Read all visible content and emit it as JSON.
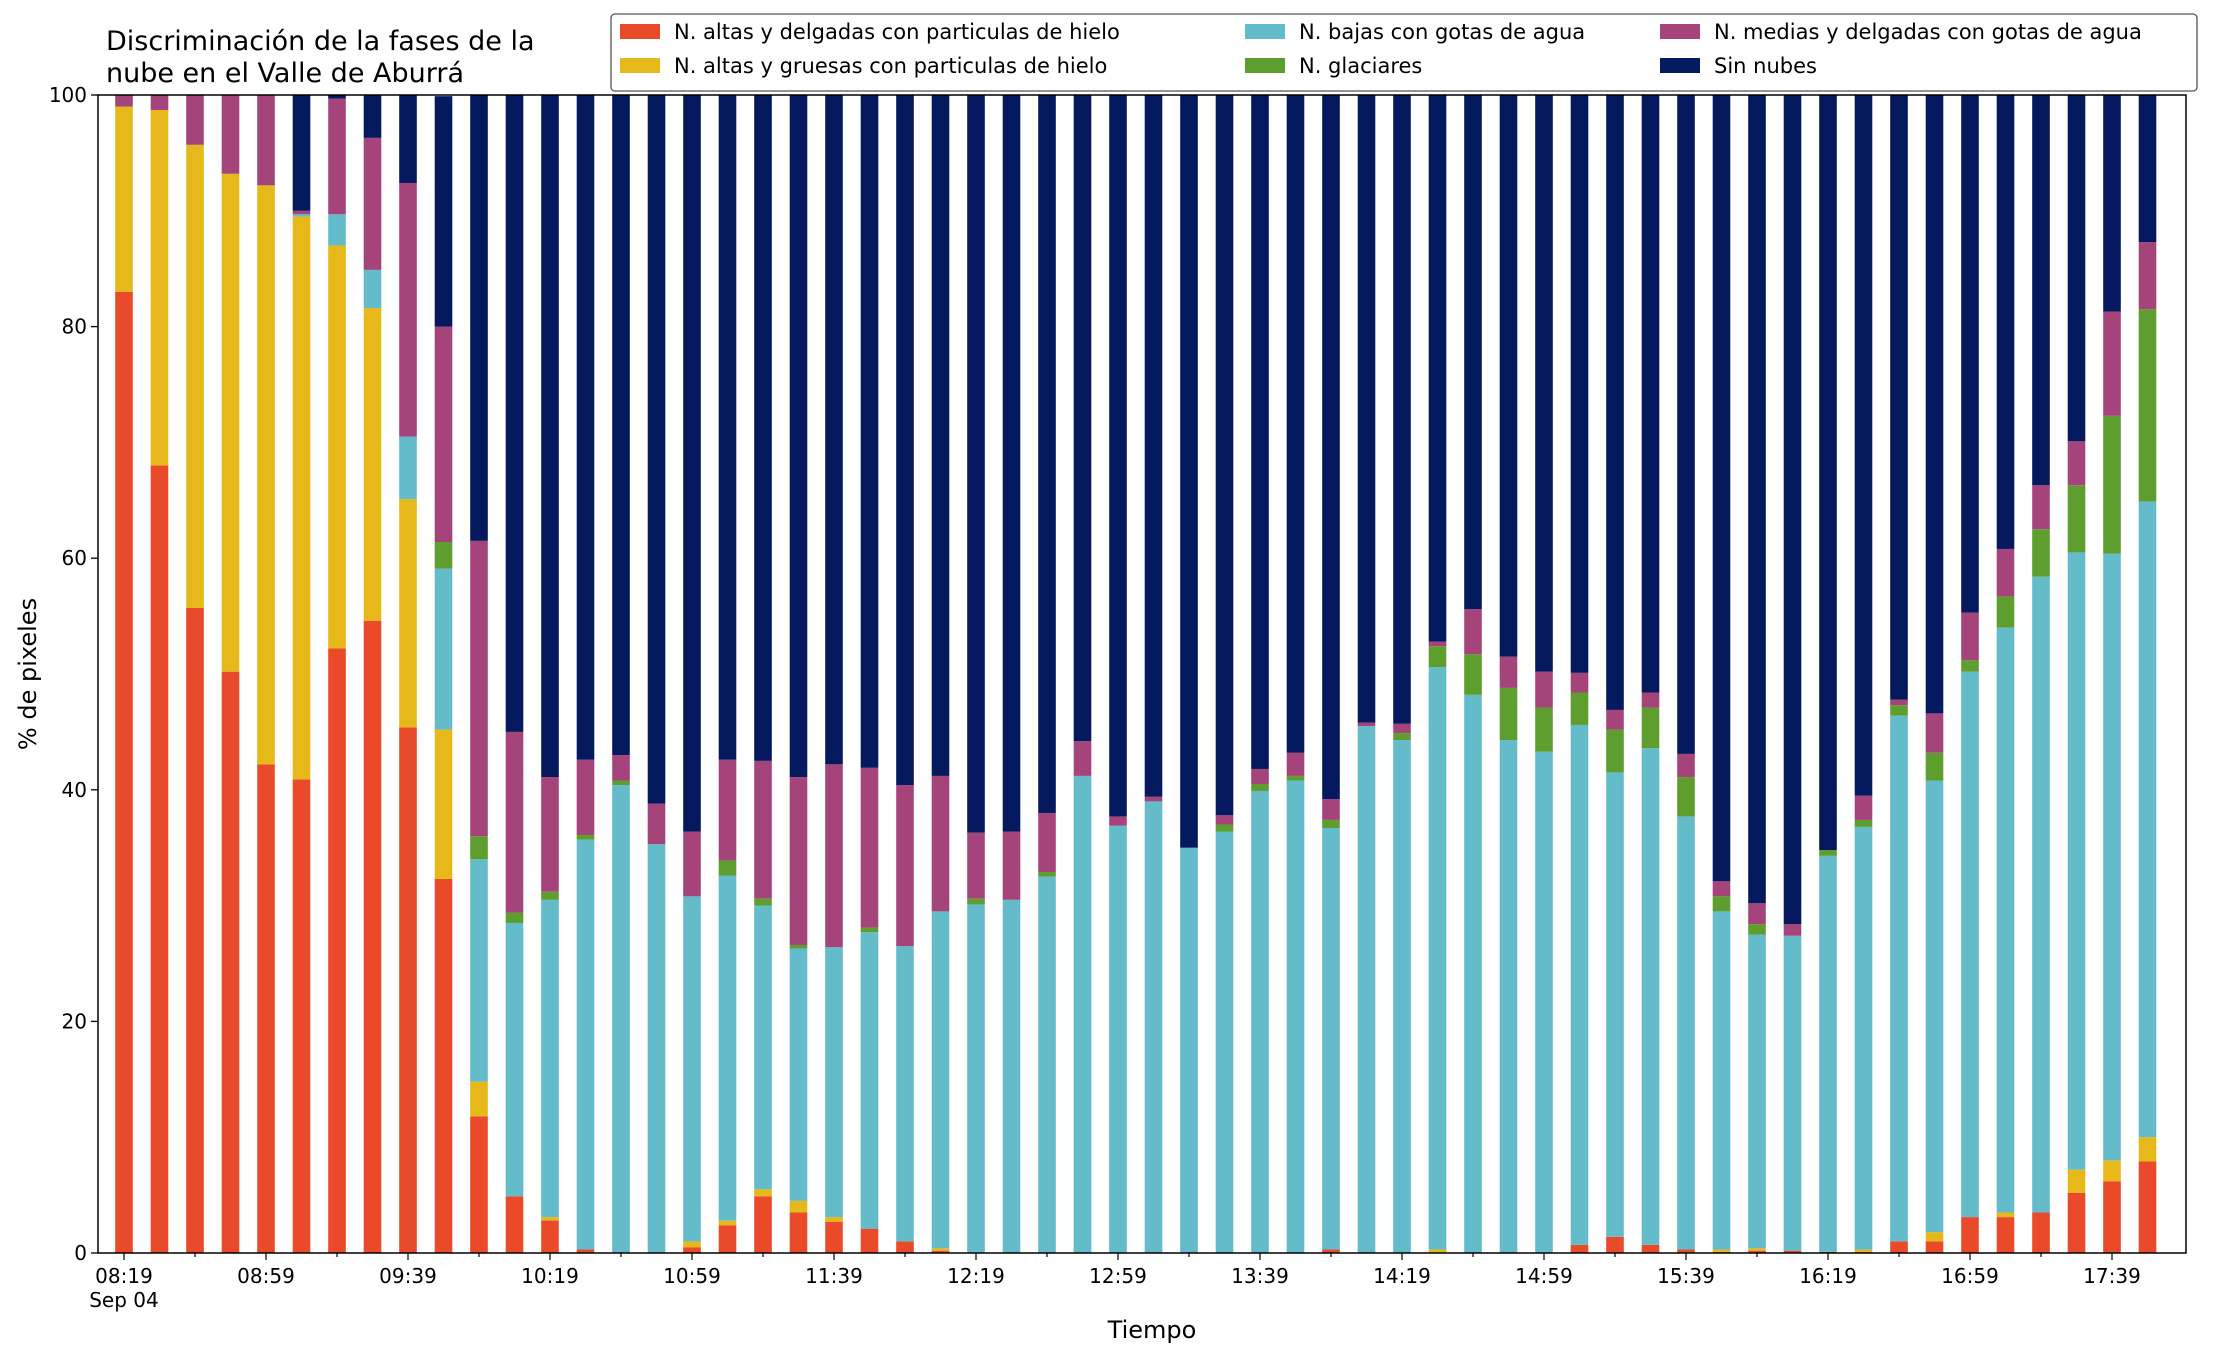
{
  "chart_data": {
    "type": "bar",
    "stacked": true,
    "title_lines": [
      "Discriminación de la fases de la",
      "nube en el Valle de Aburrá"
    ],
    "xlabel": "Tiempo",
    "ylabel": "% de pixeles",
    "ylim": [
      0,
      100
    ],
    "y_ticks": [
      "0",
      "20",
      "40",
      "60",
      "80",
      "100"
    ],
    "x_tick_labels": [
      "08:19",
      "08:59",
      "09:39",
      "10:19",
      "10:59",
      "11:39",
      "12:19",
      "12:59",
      "13:39",
      "14:19",
      "14:59",
      "15:39",
      "16:19",
      "16:59",
      "17:39"
    ],
    "x_tick_sublabel": "Sep 04",
    "legend_position": "upper right",
    "grid": false,
    "categories": [
      "08:19",
      "08:29",
      "08:39",
      "08:49",
      "08:59",
      "09:09",
      "09:19",
      "09:29",
      "09:39",
      "09:49",
      "09:59",
      "10:09",
      "10:19",
      "10:29",
      "10:39",
      "10:49",
      "10:59",
      "11:09",
      "11:19",
      "11:29",
      "11:39",
      "11:49",
      "11:59",
      "12:09",
      "12:19",
      "12:29",
      "12:39",
      "12:49",
      "12:59",
      "13:09",
      "13:19",
      "13:29",
      "13:39",
      "13:49",
      "13:59",
      "14:09",
      "14:19",
      "14:29",
      "14:39",
      "14:49",
      "14:59",
      "15:09",
      "15:19",
      "15:29",
      "15:39",
      "15:49",
      "15:59",
      "16:09",
      "16:19",
      "16:29",
      "16:39",
      "16:49",
      "16:59",
      "17:09",
      "17:19",
      "17:29",
      "17:39",
      "17:49"
    ],
    "series": [
      {
        "name": "N. altas y delgadas con particulas de hielo",
        "color": "#e84a2a",
        "values": [
          83,
          68,
          55.7,
          50.2,
          42.2,
          40.9,
          52.2,
          54.6,
          45.4,
          32.3,
          11.8,
          4.9,
          2.8,
          0.3,
          0,
          0,
          0.5,
          2.4,
          4.9,
          3.5,
          2.7,
          2.1,
          1.0,
          0.2,
          0,
          0,
          0,
          0,
          0,
          0,
          0,
          0,
          0,
          0,
          0.3,
          0,
          0,
          0,
          0,
          0,
          0,
          0.7,
          1.4,
          0.7,
          0.3,
          0.1,
          0.2,
          0.2,
          0.1,
          0.1,
          1.0,
          1.0,
          3.1,
          3.1,
          3.5,
          5.2,
          6.2,
          7.9
        ]
      },
      {
        "name": "N. altas y gruesas con particulas de hielo",
        "color": "#e6b81a",
        "values": [
          16,
          30.7,
          40,
          43,
          50,
          48.6,
          34.8,
          27,
          19.7,
          12.9,
          3.0,
          0,
          0.3,
          0,
          0,
          0,
          0.5,
          0.4,
          0.6,
          1.0,
          0.4,
          0,
          0,
          0.2,
          0,
          0,
          0,
          0,
          0,
          0,
          0,
          0,
          0,
          0,
          0,
          0,
          0,
          0.3,
          0,
          0,
          0,
          0,
          0,
          0,
          0,
          0.2,
          0.2,
          0,
          0,
          0.2,
          0,
          0.8,
          0,
          0.4,
          0,
          2.0,
          1.8,
          2.1
        ]
      },
      {
        "name": "N. bajas con gotas de agua",
        "color": "#64bccb",
        "values": [
          0,
          0,
          0,
          0,
          0,
          0.2,
          2.7,
          3.3,
          5.4,
          13.9,
          19.2,
          23.6,
          27.4,
          35.4,
          40.4,
          35.3,
          29.8,
          29.8,
          24.5,
          21.8,
          23.3,
          25.6,
          25.5,
          29.1,
          30.1,
          30.5,
          32.5,
          41.2,
          36.9,
          39.0,
          35.0,
          36.4,
          39.9,
          40.8,
          36.4,
          45.5,
          44.3,
          50.3,
          48.2,
          44.3,
          43.3,
          44.9,
          40.1,
          42.9,
          37.4,
          29.2,
          27.1,
          27.2,
          34.2,
          36.5,
          45.4,
          39.0,
          47.1,
          50.5,
          54.9,
          53.3,
          52.4,
          54.9
        ]
      },
      {
        "name": "N. glaciares",
        "color": "#5e9e2e",
        "values": [
          0,
          0,
          0,
          0,
          0,
          0,
          0,
          0,
          0,
          2.3,
          2.0,
          0.9,
          0.7,
          0.4,
          0.4,
          0,
          0,
          1.3,
          0.6,
          0.3,
          0,
          0.4,
          0,
          0,
          0.5,
          0,
          0.4,
          0,
          0,
          0,
          0,
          0.6,
          0.6,
          0.4,
          0.7,
          0,
          0.6,
          1.8,
          3.5,
          4.5,
          3.8,
          2.8,
          3.7,
          3.5,
          3.4,
          1.3,
          0.9,
          0,
          0.5,
          0.6,
          0.9,
          2.4,
          1.0,
          2.7,
          4.1,
          5.8,
          11.9,
          16.6
        ]
      },
      {
        "name": "N. medias y delgadas con gotas de agua",
        "color": "#a4447a",
        "values": [
          1,
          1.3,
          4.3,
          6.8,
          7.8,
          0.3,
          10,
          11.4,
          21.9,
          18.6,
          25.5,
          15.6,
          9.9,
          6.5,
          2.2,
          3.5,
          5.6,
          8.7,
          11.9,
          14.5,
          15.8,
          13.8,
          13.9,
          11.7,
          5.7,
          5.9,
          5.1,
          3.0,
          0.8,
          0.4,
          0,
          0.8,
          1.3,
          2.0,
          1.8,
          0.3,
          0.8,
          0.4,
          3.9,
          2.7,
          3.1,
          1.7,
          1.7,
          1.3,
          2.0,
          1.3,
          1.8,
          1.0,
          0,
          2.1,
          0.5,
          3.4,
          4.1,
          4.1,
          3.8,
          3.8,
          9.0,
          5.8
        ]
      },
      {
        "name": "Sin nubes",
        "color": "#04195e",
        "values": [
          0,
          0,
          0,
          0,
          0,
          10.0,
          0.3,
          3.7,
          7.6,
          19.9,
          38.5,
          55.0,
          58.9,
          57.4,
          57.0,
          61.2,
          63.6,
          57.4,
          57.5,
          58.9,
          57.8,
          58.1,
          59.6,
          58.8,
          63.7,
          63.6,
          62.0,
          55.8,
          62.3,
          60.6,
          65.0,
          62.2,
          58.2,
          56.8,
          60.8,
          54.2,
          54.3,
          47.2,
          44.4,
          48.5,
          49.8,
          49.9,
          53.1,
          51.6,
          56.9,
          67.9,
          69.8,
          71.6,
          65.2,
          60.5,
          52.2,
          53.4,
          44.7,
          39.2,
          33.7,
          29.9,
          18.7,
          12.7
        ]
      }
    ]
  }
}
